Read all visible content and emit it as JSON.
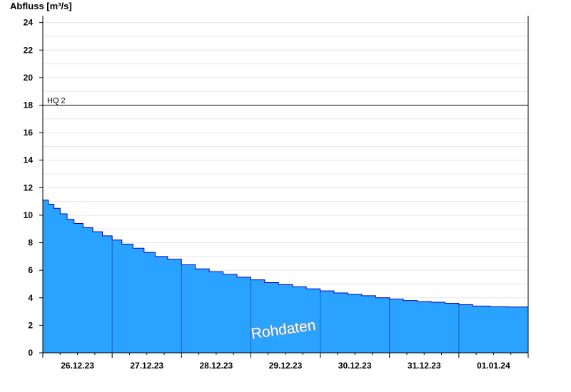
{
  "chart_data": {
    "type": "area",
    "ylabel": "Abfluss [m³/s]",
    "xlabel": "",
    "ylim": [
      0,
      24.5
    ],
    "yticks": [
      0,
      2,
      4,
      6,
      8,
      10,
      12,
      14,
      16,
      18,
      20,
      22,
      24
    ],
    "x_unit": "days",
    "x_range_days": [
      0,
      7
    ],
    "day_labels": [
      "26.12.23",
      "27.12.23",
      "28.12.23",
      "29.12.23",
      "30.12.23",
      "31.12.23",
      "01.01.24"
    ],
    "grid": true,
    "colors": {
      "fill": "#29a3ff",
      "line": "#0000cc",
      "axis": "#000000",
      "grid": "#e6e6e6",
      "dayline": "#1f5fa8"
    },
    "reference_line": {
      "label": "HQ 2",
      "value": 18
    },
    "annotation": "Rohdaten",
    "series": [
      {
        "points": [
          [
            0.0,
            11.1
          ],
          [
            0.08,
            10.8
          ],
          [
            0.16,
            10.5
          ],
          [
            0.25,
            10.1
          ],
          [
            0.35,
            9.7
          ],
          [
            0.45,
            9.4
          ],
          [
            0.58,
            9.1
          ],
          [
            0.72,
            8.8
          ],
          [
            0.86,
            8.5
          ],
          [
            1.0,
            8.2
          ],
          [
            1.14,
            7.9
          ],
          [
            1.3,
            7.6
          ],
          [
            1.46,
            7.3
          ],
          [
            1.62,
            7.0
          ],
          [
            1.8,
            6.8
          ],
          [
            2.0,
            6.4
          ],
          [
            2.2,
            6.1
          ],
          [
            2.4,
            5.9
          ],
          [
            2.6,
            5.7
          ],
          [
            2.8,
            5.5
          ],
          [
            3.0,
            5.3
          ],
          [
            3.2,
            5.1
          ],
          [
            3.4,
            4.95
          ],
          [
            3.6,
            4.8
          ],
          [
            3.8,
            4.65
          ],
          [
            4.0,
            4.5
          ],
          [
            4.2,
            4.35
          ],
          [
            4.4,
            4.25
          ],
          [
            4.6,
            4.15
          ],
          [
            4.8,
            4.0
          ],
          [
            5.0,
            3.9
          ],
          [
            5.2,
            3.8
          ],
          [
            5.4,
            3.72
          ],
          [
            5.6,
            3.68
          ],
          [
            5.8,
            3.6
          ],
          [
            6.0,
            3.5
          ],
          [
            6.2,
            3.4
          ],
          [
            6.45,
            3.35
          ],
          [
            6.7,
            3.33
          ],
          [
            7.0,
            3.33
          ]
        ]
      }
    ]
  }
}
